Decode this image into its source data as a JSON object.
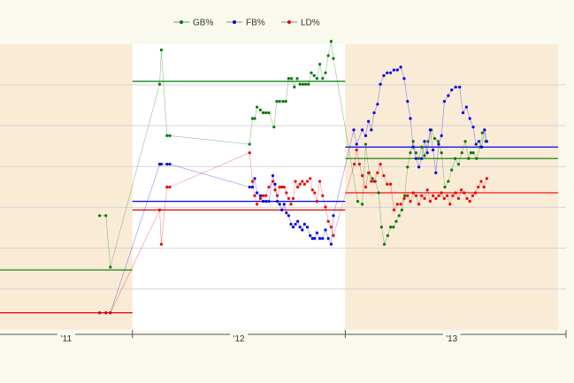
{
  "chart_data": {
    "type": "line",
    "legend": {
      "placement": "top-center",
      "items": [
        {
          "label": "GB%",
          "color": "#007a00"
        },
        {
          "label": "FB%",
          "color": "#0000e6"
        },
        {
          "label": "LD%",
          "color": "#e60000"
        }
      ]
    },
    "x_ticks": [
      "'11",
      "'12",
      "'13"
    ],
    "x_range": [
      0,
      100
    ],
    "y_range": [
      0,
      100
    ],
    "grid": true,
    "season_colors": {
      "out_of_season": "#faebd7",
      "in_season": "#ffffff"
    },
    "seasons": [
      {
        "label": "'11",
        "x_start": 0,
        "x_end": 23.4,
        "shaded": true
      },
      {
        "label": "'12",
        "x_start": 23.4,
        "x_end": 61,
        "shaded": false
      },
      {
        "label": "'13",
        "x_start": 61,
        "x_end": 98.6,
        "shaded": true
      }
    ],
    "averages": [
      {
        "series": "GB%",
        "season": "'11",
        "value": 21
      },
      {
        "series": "LD%",
        "season": "'11",
        "value": 6
      },
      {
        "series": "GB%",
        "season": "'12",
        "value": 87
      },
      {
        "series": "FB%",
        "season": "'12",
        "value": 45
      },
      {
        "series": "LD%",
        "season": "'12",
        "value": 42
      },
      {
        "series": "GB%",
        "season": "'13",
        "value": 60
      },
      {
        "series": "FB%",
        "season": "'13",
        "value": 64
      },
      {
        "series": "LD%",
        "season": "'13",
        "value": 48
      }
    ],
    "series": [
      {
        "name": "GB%",
        "color": "#007a00",
        "points": [
          [
            17.6,
            40
          ],
          [
            18.7,
            40
          ],
          [
            19.5,
            22
          ],
          [
            28.2,
            86
          ],
          [
            28.5,
            98
          ],
          [
            29.5,
            68
          ],
          [
            30,
            68
          ],
          [
            44.1,
            65
          ],
          [
            44.6,
            74
          ],
          [
            45,
            74
          ],
          [
            45.4,
            78
          ],
          [
            46,
            77
          ],
          [
            46.5,
            76
          ],
          [
            47,
            76
          ],
          [
            47.5,
            76
          ],
          [
            48.4,
            71
          ],
          [
            48.9,
            80
          ],
          [
            49.4,
            80
          ],
          [
            50,
            80
          ],
          [
            50.5,
            80
          ],
          [
            51,
            88
          ],
          [
            51.5,
            88
          ],
          [
            52,
            85
          ],
          [
            52.5,
            88
          ],
          [
            53,
            86
          ],
          [
            53.5,
            86
          ],
          [
            54,
            86
          ],
          [
            54.5,
            86
          ],
          [
            55,
            90
          ],
          [
            55.5,
            89
          ],
          [
            56,
            88
          ],
          [
            56.5,
            93
          ],
          [
            57,
            88
          ],
          [
            57.5,
            90
          ],
          [
            58,
            96
          ],
          [
            58.5,
            101
          ],
          [
            58.9,
            95
          ],
          [
            63.2,
            45
          ],
          [
            64,
            44
          ],
          [
            64.6,
            65
          ],
          [
            65.2,
            55
          ],
          [
            65.8,
            53
          ],
          [
            66.3,
            52
          ],
          [
            66.9,
            48
          ],
          [
            67.4,
            36
          ],
          [
            67.9,
            30
          ],
          [
            68.5,
            33
          ],
          [
            69,
            36
          ],
          [
            69.5,
            36
          ],
          [
            70,
            38
          ],
          [
            70.5,
            40
          ],
          [
            71,
            42
          ],
          [
            71.5,
            47
          ],
          [
            72,
            57
          ],
          [
            72.5,
            62
          ],
          [
            73,
            66
          ],
          [
            73.5,
            62
          ],
          [
            74,
            60
          ],
          [
            74.5,
            64
          ],
          [
            75,
            61
          ],
          [
            75.6,
            66
          ],
          [
            76.2,
            70
          ],
          [
            76.8,
            67
          ],
          [
            77.4,
            66
          ],
          [
            78,
            62
          ],
          [
            78.6,
            50
          ],
          [
            79.2,
            52
          ],
          [
            79.8,
            56
          ],
          [
            80.4,
            60
          ],
          [
            81,
            58
          ],
          [
            81.6,
            62
          ],
          [
            82.2,
            66
          ],
          [
            82.8,
            60
          ],
          [
            83.2,
            62
          ],
          [
            83.6,
            62
          ],
          [
            84.2,
            60
          ],
          [
            84.8,
            64
          ],
          [
            85.2,
            69
          ],
          [
            85.6,
            70
          ],
          [
            85.8,
            66
          ]
        ]
      },
      {
        "name": "FB%",
        "color": "#0000e6",
        "points": [
          [
            17.6,
            6
          ],
          [
            18.7,
            6
          ],
          [
            19.5,
            6
          ],
          [
            28.2,
            58
          ],
          [
            28.5,
            58
          ],
          [
            29.5,
            58
          ],
          [
            30,
            58
          ],
          [
            44.1,
            50
          ],
          [
            44.6,
            50
          ],
          [
            45,
            53
          ],
          [
            45.4,
            48
          ],
          [
            46,
            47
          ],
          [
            46.5,
            45
          ],
          [
            47,
            45
          ],
          [
            47.5,
            45
          ],
          [
            48.2,
            54
          ],
          [
            48.6,
            51
          ],
          [
            49,
            45
          ],
          [
            49.4,
            44
          ],
          [
            49.8,
            42
          ],
          [
            50.2,
            44
          ],
          [
            50.6,
            41
          ],
          [
            51,
            40
          ],
          [
            51.4,
            37
          ],
          [
            51.8,
            36
          ],
          [
            52.2,
            37
          ],
          [
            52.6,
            38
          ],
          [
            53,
            36
          ],
          [
            53.4,
            35
          ],
          [
            53.8,
            37
          ],
          [
            54.3,
            36
          ],
          [
            54.8,
            33
          ],
          [
            55.2,
            32
          ],
          [
            55.6,
            32
          ],
          [
            56,
            34
          ],
          [
            56.5,
            32
          ],
          [
            57,
            32
          ],
          [
            57.5,
            35
          ],
          [
            58,
            32
          ],
          [
            58.5,
            30
          ],
          [
            58.9,
            40
          ],
          [
            62.5,
            70
          ],
          [
            63,
            65
          ],
          [
            64,
            70
          ],
          [
            64.6,
            68
          ],
          [
            65.1,
            73
          ],
          [
            65.6,
            70
          ],
          [
            66.1,
            76
          ],
          [
            66.7,
            79
          ],
          [
            67.2,
            86
          ],
          [
            67.8,
            89
          ],
          [
            68.4,
            90
          ],
          [
            69,
            90
          ],
          [
            69.6,
            91
          ],
          [
            70.2,
            91
          ],
          [
            70.8,
            92
          ],
          [
            71.4,
            88
          ],
          [
            72,
            80
          ],
          [
            72.5,
            74
          ],
          [
            73,
            64
          ],
          [
            73.5,
            60
          ],
          [
            74,
            57
          ],
          [
            74.5,
            60
          ],
          [
            75,
            66
          ],
          [
            75.5,
            62
          ],
          [
            76,
            70
          ],
          [
            76.5,
            63
          ],
          [
            77,
            55
          ],
          [
            77.5,
            65
          ],
          [
            78,
            68
          ],
          [
            78.5,
            80
          ],
          [
            79.2,
            82
          ],
          [
            79.8,
            84
          ],
          [
            80.5,
            85
          ],
          [
            81.2,
            85
          ],
          [
            81.8,
            76
          ],
          [
            82.4,
            78
          ],
          [
            83,
            74
          ],
          [
            83.6,
            71
          ],
          [
            84.1,
            65
          ],
          [
            84.6,
            66
          ],
          [
            85.1,
            64
          ],
          [
            85.6,
            70
          ],
          [
            86,
            66
          ]
        ]
      },
      {
        "name": "LD%",
        "color": "#e60000",
        "points": [
          [
            17.6,
            6
          ],
          [
            18.7,
            6
          ],
          [
            19.5,
            6
          ],
          [
            28.2,
            42
          ],
          [
            28.5,
            30
          ],
          [
            29.5,
            50
          ],
          [
            30,
            50
          ],
          [
            44.1,
            62
          ],
          [
            44.6,
            52
          ],
          [
            45,
            47
          ],
          [
            45.4,
            44
          ],
          [
            46,
            46
          ],
          [
            46.5,
            47
          ],
          [
            47,
            47
          ],
          [
            47.5,
            50
          ],
          [
            48.2,
            52
          ],
          [
            48.6,
            49
          ],
          [
            49,
            47
          ],
          [
            49.4,
            50
          ],
          [
            49.8,
            50
          ],
          [
            50.2,
            50
          ],
          [
            50.6,
            48
          ],
          [
            51,
            46
          ],
          [
            51.4,
            44
          ],
          [
            51.8,
            46
          ],
          [
            52.2,
            52
          ],
          [
            52.6,
            50
          ],
          [
            53,
            51
          ],
          [
            53.4,
            52
          ],
          [
            53.8,
            51
          ],
          [
            54.3,
            52
          ],
          [
            54.8,
            53
          ],
          [
            55.2,
            49
          ],
          [
            55.6,
            48
          ],
          [
            56,
            45
          ],
          [
            56.5,
            52
          ],
          [
            57,
            47
          ],
          [
            57.5,
            43
          ],
          [
            58,
            38
          ],
          [
            58.5,
            36
          ],
          [
            58.9,
            33
          ],
          [
            62.6,
            58
          ],
          [
            63,
            63
          ],
          [
            63.5,
            58
          ],
          [
            64,
            54
          ],
          [
            64.6,
            50
          ],
          [
            65.1,
            55
          ],
          [
            65.6,
            52
          ],
          [
            66.1,
            52
          ],
          [
            66.7,
            55
          ],
          [
            67.2,
            58
          ],
          [
            67.8,
            54
          ],
          [
            68.4,
            51
          ],
          [
            69,
            51
          ],
          [
            69.6,
            42
          ],
          [
            70.2,
            44
          ],
          [
            70.8,
            44
          ],
          [
            71.4,
            46
          ],
          [
            72,
            47
          ],
          [
            72.5,
            45
          ],
          [
            73,
            48
          ],
          [
            73.5,
            47
          ],
          [
            74,
            44
          ],
          [
            74.5,
            47
          ],
          [
            75,
            46
          ],
          [
            75.5,
            49
          ],
          [
            76,
            45
          ],
          [
            76.5,
            47
          ],
          [
            77,
            46
          ],
          [
            77.5,
            47
          ],
          [
            78,
            48
          ],
          [
            78.5,
            46
          ],
          [
            79,
            47
          ],
          [
            79.5,
            44
          ],
          [
            80,
            47
          ],
          [
            80.5,
            48
          ],
          [
            81,
            46
          ],
          [
            81.5,
            49
          ],
          [
            82,
            48
          ],
          [
            82.5,
            46
          ],
          [
            83,
            45
          ],
          [
            83.5,
            47
          ],
          [
            84,
            48
          ],
          [
            84.5,
            50
          ],
          [
            85,
            52
          ],
          [
            85.5,
            50
          ],
          [
            86,
            53
          ]
        ]
      }
    ]
  }
}
